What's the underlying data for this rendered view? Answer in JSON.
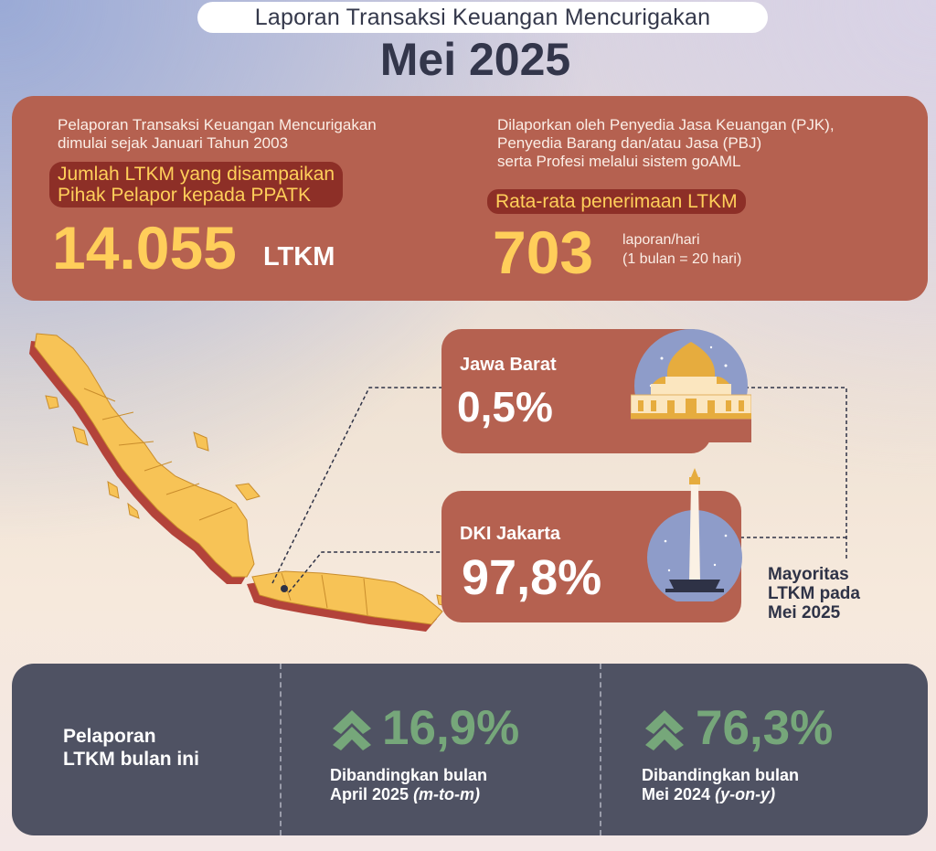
{
  "header": {
    "subtitle": "Laporan Transaksi Keuangan Mencurigakan",
    "title": "Mei 2025"
  },
  "top": {
    "left": {
      "note_line1": "Pelaporan Transaksi Keuangan Mencurigakan",
      "note_line2": "dimulai sejak Januari Tahun 2003",
      "highlight_line1": "Jumlah LTKM yang disampaikan",
      "highlight_line2": "Pihak Pelapor kepada PPATK",
      "value": "14.055",
      "unit": "LTKM"
    },
    "right": {
      "note_line1": "Dilaporkan oleh Penyedia Jasa Keuangan (PJK),",
      "note_line2": "Penyedia Barang dan/atau Jasa (PBJ)",
      "note_line3": "serta Profesi melalui sistem goAML",
      "highlight": "Rata-rata penerimaan LTKM",
      "value": "703",
      "unit_line1": "laporan/hari",
      "unit_line2": "(1 bulan = 20 hari)"
    }
  },
  "regions": [
    {
      "name": "Jawa Barat",
      "share": "0,5%"
    },
    {
      "name": "DKI Jakarta",
      "share": "97,8%"
    }
  ],
  "majority_note": [
    "Mayoritas",
    "LTKM pada",
    "Mei 2025"
  ],
  "bottom": {
    "label_line1": "Pelaporan",
    "label_line2": "LTKM bulan ini",
    "mtm": {
      "value": "16,9%",
      "line1": "Dibandingkan bulan",
      "line2": "April 2025",
      "tag": "(m-to-m)"
    },
    "yoy": {
      "value": "76,3%",
      "line1": "Dibandingkan bulan",
      "line2": "Mei 2024",
      "tag": "(y-on-y)"
    },
    "icon": "double-chevron-up-icon"
  },
  "colors": {
    "card": "#b56150",
    "highlight_bg": "#8d2f27",
    "gold": "#ffce5a",
    "dark_panel": "#4f5263",
    "growth": "#76a77a"
  }
}
